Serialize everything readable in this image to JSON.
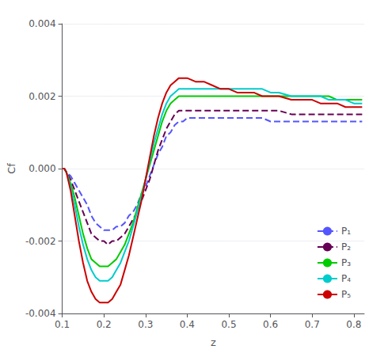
{
  "chart_data": {
    "type": "line",
    "xlabel": "z",
    "ylabel": "Cf",
    "xlim": [
      0.1,
      0.825
    ],
    "ylim": [
      -0.004,
      0.004
    ],
    "xticks": [
      0.1,
      0.2,
      0.3,
      0.4,
      0.5,
      0.6,
      0.7,
      0.8
    ],
    "yticks": [
      -0.004,
      -0.002,
      {
        "value": 0,
        "label": "0.000"
      },
      0.002,
      0.004
    ],
    "grid": "y",
    "legend": "lower right",
    "x": [
      0.1,
      0.105,
      0.11,
      0.12,
      0.13,
      0.14,
      0.15,
      0.16,
      0.17,
      0.18,
      0.19,
      0.2,
      0.21,
      0.22,
      0.23,
      0.24,
      0.25,
      0.26,
      0.27,
      0.28,
      0.29,
      0.3,
      0.31,
      0.32,
      0.33,
      0.34,
      0.35,
      0.36,
      0.37,
      0.38,
      0.39,
      0.4,
      0.42,
      0.44,
      0.46,
      0.48,
      0.5,
      0.52,
      0.54,
      0.56,
      0.58,
      0.6,
      0.62,
      0.65,
      0.68,
      0.7,
      0.72,
      0.74,
      0.76,
      0.78,
      0.8,
      0.82
    ],
    "series": [
      {
        "name": "P₁",
        "color": "#5555ff",
        "line_style": "dashed",
        "values": [
          0.0,
          0.0,
          -0.0001,
          -0.0002,
          -0.0004,
          -0.0006,
          -0.0008,
          -0.001,
          -0.0013,
          -0.0015,
          -0.0016,
          -0.0017,
          -0.0017,
          -0.0017,
          -0.0016,
          -0.0016,
          -0.0015,
          -0.0013,
          -0.0012,
          -0.001,
          -0.0007,
          -0.0005,
          -0.0002,
          0.0001,
          0.0004,
          0.0006,
          0.0009,
          0.001,
          0.0012,
          0.0013,
          0.0013,
          0.0014,
          0.0014,
          0.0014,
          0.0014,
          0.0014,
          0.0014,
          0.0014,
          0.0014,
          0.0014,
          0.0014,
          0.0013,
          0.0013,
          0.0013,
          0.0013,
          0.0013,
          0.0013,
          0.0013,
          0.0013,
          0.0013,
          0.0013,
          0.0013
        ]
      },
      {
        "name": "P₂",
        "color": "#660055",
        "line_style": "dashed",
        "values": [
          0.0,
          0.0,
          -0.0001,
          -0.0003,
          -0.0006,
          -0.0009,
          -0.0012,
          -0.0015,
          -0.0018,
          -0.0019,
          -0.002,
          -0.002,
          -0.0021,
          -0.002,
          -0.002,
          -0.0019,
          -0.0018,
          -0.0016,
          -0.0014,
          -0.0012,
          -0.0009,
          -0.0006,
          -0.0003,
          0.0001,
          0.0005,
          0.0008,
          0.0011,
          0.0013,
          0.0015,
          0.0016,
          0.0016,
          0.0016,
          0.0016,
          0.0016,
          0.0016,
          0.0016,
          0.0016,
          0.0016,
          0.0016,
          0.0016,
          0.0016,
          0.0016,
          0.0016,
          0.0015,
          0.0015,
          0.0015,
          0.0015,
          0.0015,
          0.0015,
          0.0015,
          0.0015,
          0.0015
        ]
      },
      {
        "name": "P₃",
        "color": "#00cc00",
        "line_style": "solid",
        "values": [
          0.0,
          0.0,
          -0.0001,
          -0.0004,
          -0.0008,
          -0.0013,
          -0.0018,
          -0.0022,
          -0.0025,
          -0.0026,
          -0.0027,
          -0.0027,
          -0.0027,
          -0.0026,
          -0.0025,
          -0.0023,
          -0.0021,
          -0.0018,
          -0.0015,
          -0.0011,
          -0.0007,
          -0.0003,
          0.0001,
          0.0005,
          0.0009,
          0.0013,
          0.0016,
          0.0018,
          0.0019,
          0.002,
          0.002,
          0.002,
          0.002,
          0.002,
          0.002,
          0.002,
          0.002,
          0.002,
          0.002,
          0.002,
          0.002,
          0.002,
          0.002,
          0.002,
          0.002,
          0.002,
          0.002,
          0.002,
          0.0019,
          0.0019,
          0.0019,
          0.0019
        ]
      },
      {
        "name": "P₄",
        "color": "#00cccc",
        "line_style": "solid",
        "values": [
          0.0,
          0.0,
          -0.0001,
          -0.0005,
          -0.001,
          -0.0016,
          -0.0021,
          -0.0025,
          -0.0028,
          -0.003,
          -0.0031,
          -0.0031,
          -0.0031,
          -0.003,
          -0.0028,
          -0.0026,
          -0.0023,
          -0.002,
          -0.0016,
          -0.0012,
          -0.0008,
          -0.0003,
          0.0002,
          0.0007,
          0.0011,
          0.0015,
          0.0018,
          0.002,
          0.0021,
          0.0022,
          0.0022,
          0.0022,
          0.0022,
          0.0022,
          0.0022,
          0.0022,
          0.0022,
          0.0022,
          0.0022,
          0.0022,
          0.0022,
          0.0021,
          0.0021,
          0.002,
          0.002,
          0.002,
          0.002,
          0.0019,
          0.0019,
          0.0019,
          0.0018,
          0.0018
        ]
      },
      {
        "name": "P₅",
        "color": "#cc0000",
        "line_style": "solid",
        "values": [
          0.0,
          0.0,
          -0.0001,
          -0.0006,
          -0.0013,
          -0.002,
          -0.0026,
          -0.0031,
          -0.0034,
          -0.0036,
          -0.0037,
          -0.0037,
          -0.0037,
          -0.0036,
          -0.0034,
          -0.0032,
          -0.0028,
          -0.0024,
          -0.0019,
          -0.0014,
          -0.0009,
          -0.0003,
          0.0003,
          0.0009,
          0.0014,
          0.0018,
          0.0021,
          0.0023,
          0.0024,
          0.0025,
          0.0025,
          0.0025,
          0.0024,
          0.0024,
          0.0023,
          0.0022,
          0.0022,
          0.0021,
          0.0021,
          0.0021,
          0.002,
          0.002,
          0.002,
          0.0019,
          0.0019,
          0.0019,
          0.0018,
          0.0018,
          0.0018,
          0.0017,
          0.0017,
          0.0017
        ]
      }
    ]
  }
}
